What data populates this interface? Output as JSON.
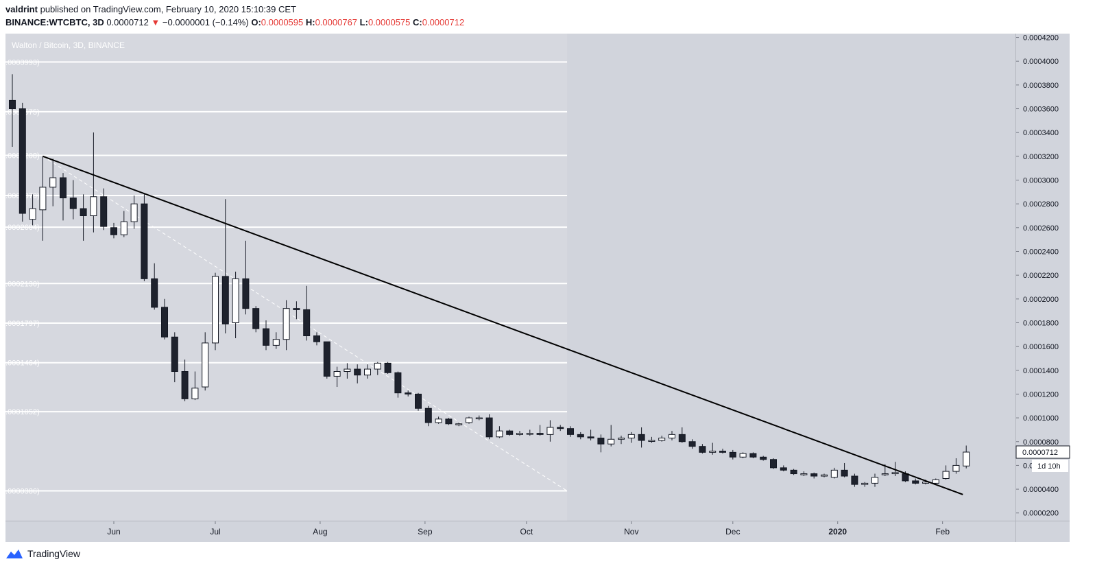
{
  "header": {
    "author": "valdrint",
    "published_text": "published on TradingView.com, February 10, 2020 15:10:39 CET",
    "symbol": "BINANCE:WTCBTC, 3D",
    "last_price": "0.0000712",
    "change_arrow": "▼",
    "change": "−0.0000001 (−0.14%)",
    "ohlc": [
      {
        "label": "O:",
        "value": "0.0000595"
      },
      {
        "label": "H:",
        "value": "0.0000767"
      },
      {
        "label": "L:",
        "value": "0.0000575"
      },
      {
        "label": "C:",
        "value": "0.0000712"
      }
    ]
  },
  "chart_data": {
    "type": "candlestick",
    "title": "Walton / Bitcoin, 3D, BINANCE",
    "ylim": [
      1.35e-05,
      0.0004232
    ],
    "y_ticks": [
      "0.0000200",
      "0.0000400",
      "0.0000600",
      "0.0000800",
      "0.0001000",
      "0.0001200",
      "0.0001400",
      "0.0001600",
      "0.0001800",
      "0.0002000",
      "0.0002200",
      "0.0002400",
      "0.0002600",
      "0.0002800",
      "0.0003000",
      "0.0003200",
      "0.0003400",
      "0.0003600",
      "0.0003800",
      "0.0004000",
      "0.0004200"
    ],
    "x_ticks": [
      {
        "label": "Jun",
        "date": "2019-06-01"
      },
      {
        "label": "Jul",
        "date": "2019-07-01"
      },
      {
        "label": "Aug",
        "date": "2019-08-01"
      },
      {
        "label": "Sep",
        "date": "2019-09-01"
      },
      {
        "label": "Oct",
        "date": "2019-10-01"
      },
      {
        "label": "Nov",
        "date": "2019-11-01"
      },
      {
        "label": "Dec",
        "date": "2019-12-01"
      },
      {
        "label": "2020",
        "date": "2020-01-01"
      },
      {
        "label": "Feb",
        "date": "2020-02-01"
      }
    ],
    "horizontal_levels": [
      {
        "label": "0.0003993",
        "value": 0.0003993
      },
      {
        "label": "0.0003575",
        "value": 0.0003575
      },
      {
        "label": "0.0003208",
        "value": 0.0003208
      },
      {
        "label": "0.0002870",
        "value": 0.000287
      },
      {
        "label": "0.0002604",
        "value": 0.0002604
      },
      {
        "label": "0.0002130",
        "value": 0.000213
      },
      {
        "label": "0.0001797",
        "value": 0.0001797
      },
      {
        "label": "0.0001464",
        "value": 0.0001464
      },
      {
        "label": "0.0001052",
        "value": 0.0001052
      },
      {
        "label": "0.0000386",
        "value": 3.86e-05
      }
    ],
    "levels_end_date": "2019-10-13",
    "trendline": {
      "start": {
        "date": "2019-05-11",
        "value": 0.00032
      },
      "end": {
        "date": "2020-02-07",
        "value": 3.55e-05
      }
    },
    "dashed_line": {
      "start": {
        "date": "2019-05-11",
        "value": 0.00032
      },
      "end": {
        "date": "2019-10-13",
        "value": 3.86e-05
      }
    },
    "last_price_label": "0.0000712",
    "countdown_label": "1d 10h",
    "candles": [
      {
        "date": "2019-05-02",
        "o": 0.000367,
        "h": 0.000389,
        "l": 0.000328,
        "c": 0.00036
      },
      {
        "date": "2019-05-05",
        "o": 0.00036,
        "h": 0.000365,
        "l": 0.000265,
        "c": 0.000272
      },
      {
        "date": "2019-05-08",
        "o": 0.000267,
        "h": 0.000288,
        "l": 0.000262,
        "c": 0.000276
      },
      {
        "date": "2019-05-11",
        "o": 0.000275,
        "h": 0.00032,
        "l": 0.000249,
        "c": 0.000294
      },
      {
        "date": "2019-05-14",
        "o": 0.000294,
        "h": 0.000318,
        "l": 0.000278,
        "c": 0.000302
      },
      {
        "date": "2019-05-17",
        "o": 0.000302,
        "h": 0.000306,
        "l": 0.000266,
        "c": 0.000285
      },
      {
        "date": "2019-05-20",
        "o": 0.000285,
        "h": 0.0003,
        "l": 0.000267,
        "c": 0.000276
      },
      {
        "date": "2019-05-23",
        "o": 0.000276,
        "h": 0.000288,
        "l": 0.000249,
        "c": 0.00027
      },
      {
        "date": "2019-05-26",
        "o": 0.00027,
        "h": 0.00034,
        "l": 0.000256,
        "c": 0.000286
      },
      {
        "date": "2019-05-29",
        "o": 0.000286,
        "h": 0.000293,
        "l": 0.000258,
        "c": 0.000261
      },
      {
        "date": "2019-06-01",
        "o": 0.00026,
        "h": 0.000264,
        "l": 0.000251,
        "c": 0.000254
      },
      {
        "date": "2019-06-04",
        "o": 0.000254,
        "h": 0.000274,
        "l": 0.000252,
        "c": 0.000265
      },
      {
        "date": "2019-06-07",
        "o": 0.000265,
        "h": 0.000287,
        "l": 0.000259,
        "c": 0.00028
      },
      {
        "date": "2019-06-10",
        "o": 0.00028,
        "h": 0.000288,
        "l": 0.000215,
        "c": 0.000217
      },
      {
        "date": "2019-06-13",
        "o": 0.000217,
        "h": 0.00023,
        "l": 0.000191,
        "c": 0.000193
      },
      {
        "date": "2019-06-16",
        "o": 0.000193,
        "h": 0.0002,
        "l": 0.000166,
        "c": 0.000168
      },
      {
        "date": "2019-06-19",
        "o": 0.000168,
        "h": 0.000172,
        "l": 0.00013,
        "c": 0.000139
      },
      {
        "date": "2019-06-22",
        "o": 0.000139,
        "h": 0.000149,
        "l": 0.000114,
        "c": 0.000116
      },
      {
        "date": "2019-06-25",
        "o": 0.000116,
        "h": 0.000139,
        "l": 0.000115,
        "c": 0.000125
      },
      {
        "date": "2019-06-28",
        "o": 0.000126,
        "h": 0.000172,
        "l": 0.000123,
        "c": 0.000163
      },
      {
        "date": "2019-07-01",
        "o": 0.000163,
        "h": 0.000222,
        "l": 0.000157,
        "c": 0.000219
      },
      {
        "date": "2019-07-04",
        "o": 0.000219,
        "h": 0.000284,
        "l": 0.000171,
        "c": 0.000179
      },
      {
        "date": "2019-07-07",
        "o": 0.00018,
        "h": 0.000223,
        "l": 0.000167,
        "c": 0.000217
      },
      {
        "date": "2019-07-10",
        "o": 0.000217,
        "h": 0.000249,
        "l": 0.000187,
        "c": 0.000192
      },
      {
        "date": "2019-07-13",
        "o": 0.000192,
        "h": 0.000194,
        "l": 0.000172,
        "c": 0.000175
      },
      {
        "date": "2019-07-16",
        "o": 0.000175,
        "h": 0.000182,
        "l": 0.000157,
        "c": 0.000161
      },
      {
        "date": "2019-07-19",
        "o": 0.000161,
        "h": 0.000172,
        "l": 0.000158,
        "c": 0.000166
      },
      {
        "date": "2019-07-22",
        "o": 0.000166,
        "h": 0.000199,
        "l": 0.000157,
        "c": 0.000192
      },
      {
        "date": "2019-07-25",
        "o": 0.000192,
        "h": 0.000198,
        "l": 0.000183,
        "c": 0.000191
      },
      {
        "date": "2019-07-28",
        "o": 0.000191,
        "h": 0.000211,
        "l": 0.000165,
        "c": 0.000169
      },
      {
        "date": "2019-07-31",
        "o": 0.000169,
        "h": 0.000172,
        "l": 0.000161,
        "c": 0.000164
      },
      {
        "date": "2019-08-03",
        "o": 0.000164,
        "h": 0.000164,
        "l": 0.000133,
        "c": 0.000135
      },
      {
        "date": "2019-08-06",
        "o": 0.000135,
        "h": 0.000143,
        "l": 0.000126,
        "c": 0.000139
      },
      {
        "date": "2019-08-09",
        "o": 0.000139,
        "h": 0.000146,
        "l": 0.000133,
        "c": 0.000141
      },
      {
        "date": "2019-08-12",
        "o": 0.000141,
        "h": 0.000145,
        "l": 0.000129,
        "c": 0.000136
      },
      {
        "date": "2019-08-15",
        "o": 0.000136,
        "h": 0.000145,
        "l": 0.000133,
        "c": 0.000141
      },
      {
        "date": "2019-08-18",
        "o": 0.000141,
        "h": 0.000147,
        "l": 0.000136,
        "c": 0.000146
      },
      {
        "date": "2019-08-21",
        "o": 0.000146,
        "h": 0.000147,
        "l": 0.000137,
        "c": 0.000138
      },
      {
        "date": "2019-08-24",
        "o": 0.000138,
        "h": 0.000139,
        "l": 0.000117,
        "c": 0.000121
      },
      {
        "date": "2019-08-27",
        "o": 0.000121,
        "h": 0.000123,
        "l": 0.000118,
        "c": 0.00012
      },
      {
        "date": "2019-08-30",
        "o": 0.00012,
        "h": 0.000121,
        "l": 0.000106,
        "c": 0.000108
      },
      {
        "date": "2019-09-02",
        "o": 0.000108,
        "h": 0.00011,
        "l": 9.3e-05,
        "c": 9.6e-05
      },
      {
        "date": "2019-09-05",
        "o": 9.6e-05,
        "h": 0.000101,
        "l": 9.5e-05,
        "c": 9.9e-05
      },
      {
        "date": "2019-09-08",
        "o": 9.9e-05,
        "h": 0.0001,
        "l": 9.4e-05,
        "c": 9.5e-05
      },
      {
        "date": "2019-09-11",
        "o": 9.5e-05,
        "h": 9.6e-05,
        "l": 9.3e-05,
        "c": 9.5e-05
      },
      {
        "date": "2019-09-14",
        "o": 9.6e-05,
        "h": 0.000101,
        "l": 9.5e-05,
        "c": 0.0001
      },
      {
        "date": "2019-09-17",
        "o": 0.0001,
        "h": 0.000102,
        "l": 9.8e-05,
        "c": 0.0001
      },
      {
        "date": "2019-09-20",
        "o": 0.0001,
        "h": 0.000103,
        "l": 8.2e-05,
        "c": 8.4e-05
      },
      {
        "date": "2019-09-23",
        "o": 8.4e-05,
        "h": 9.3e-05,
        "l": 8.3e-05,
        "c": 8.9e-05
      },
      {
        "date": "2019-09-26",
        "o": 8.9e-05,
        "h": 9e-05,
        "l": 8.5e-05,
        "c": 8.6e-05
      },
      {
        "date": "2019-09-29",
        "o": 8.6e-05,
        "h": 8.9e-05,
        "l": 8.5e-05,
        "c": 8.7e-05
      },
      {
        "date": "2019-10-02",
        "o": 8.7e-05,
        "h": 9e-05,
        "l": 8.5e-05,
        "c": 8.7e-05
      },
      {
        "date": "2019-10-05",
        "o": 8.7e-05,
        "h": 9.4e-05,
        "l": 8.5e-05,
        "c": 8.6e-05
      },
      {
        "date": "2019-10-08",
        "o": 8.6e-05,
        "h": 9.8e-05,
        "l": 8e-05,
        "c": 9.2e-05
      },
      {
        "date": "2019-10-11",
        "o": 9.2e-05,
        "h": 9.4e-05,
        "l": 8.9e-05,
        "c": 9.1e-05
      },
      {
        "date": "2019-10-14",
        "o": 9.1e-05,
        "h": 9.3e-05,
        "l": 8.4e-05,
        "c": 8.6e-05
      },
      {
        "date": "2019-10-17",
        "o": 8.6e-05,
        "h": 8.8e-05,
        "l": 8.2e-05,
        "c": 8.4e-05
      },
      {
        "date": "2019-10-20",
        "o": 8.4e-05,
        "h": 9e-05,
        "l": 8.1e-05,
        "c": 8.3e-05
      },
      {
        "date": "2019-10-23",
        "o": 8.3e-05,
        "h": 8.6e-05,
        "l": 7.1e-05,
        "c": 7.8e-05
      },
      {
        "date": "2019-10-26",
        "o": 7.8e-05,
        "h": 9.4e-05,
        "l": 7.6e-05,
        "c": 8.2e-05
      },
      {
        "date": "2019-10-29",
        "o": 8.2e-05,
        "h": 8.5e-05,
        "l": 7.8e-05,
        "c": 8.3e-05
      },
      {
        "date": "2019-11-01",
        "o": 8.3e-05,
        "h": 8.8e-05,
        "l": 7.9e-05,
        "c": 8.6e-05
      },
      {
        "date": "2019-11-04",
        "o": 8.6e-05,
        "h": 9.2e-05,
        "l": 7.5e-05,
        "c": 8.1e-05
      },
      {
        "date": "2019-11-07",
        "o": 8.1e-05,
        "h": 8.4e-05,
        "l": 7.9e-05,
        "c": 8.1e-05
      },
      {
        "date": "2019-11-10",
        "o": 8.1e-05,
        "h": 8.5e-05,
        "l": 8e-05,
        "c": 8.3e-05
      },
      {
        "date": "2019-11-13",
        "o": 8.3e-05,
        "h": 8.9e-05,
        "l": 8.1e-05,
        "c": 8.6e-05
      },
      {
        "date": "2019-11-16",
        "o": 8.6e-05,
        "h": 9.2e-05,
        "l": 7.9e-05,
        "c": 8e-05
      },
      {
        "date": "2019-11-19",
        "o": 8e-05,
        "h": 8.2e-05,
        "l": 7.4e-05,
        "c": 7.6e-05
      },
      {
        "date": "2019-11-22",
        "o": 7.6e-05,
        "h": 7.8e-05,
        "l": 7e-05,
        "c": 7.1e-05
      },
      {
        "date": "2019-11-25",
        "o": 7.1e-05,
        "h": 7.9e-05,
        "l": 6.9e-05,
        "c": 7.2e-05
      },
      {
        "date": "2019-11-28",
        "o": 7.2e-05,
        "h": 7.4e-05,
        "l": 7e-05,
        "c": 7.1e-05
      },
      {
        "date": "2019-12-01",
        "o": 7.1e-05,
        "h": 7.3e-05,
        "l": 6.5e-05,
        "c": 6.7e-05
      },
      {
        "date": "2019-12-04",
        "o": 6.7e-05,
        "h": 7.1e-05,
        "l": 6.6e-05,
        "c": 7e-05
      },
      {
        "date": "2019-12-07",
        "o": 7e-05,
        "h": 7.1e-05,
        "l": 6.6e-05,
        "c": 6.7e-05
      },
      {
        "date": "2019-12-10",
        "o": 6.7e-05,
        "h": 6.8e-05,
        "l": 6.4e-05,
        "c": 6.5e-05
      },
      {
        "date": "2019-12-13",
        "o": 6.5e-05,
        "h": 6.6e-05,
        "l": 5.7e-05,
        "c": 5.8e-05
      },
      {
        "date": "2019-12-16",
        "o": 5.8e-05,
        "h": 6e-05,
        "l": 5.5e-05,
        "c": 5.6e-05
      },
      {
        "date": "2019-12-19",
        "o": 5.6e-05,
        "h": 5.7e-05,
        "l": 5.2e-05,
        "c": 5.3e-05
      },
      {
        "date": "2019-12-22",
        "o": 5.3e-05,
        "h": 5.5e-05,
        "l": 5.1e-05,
        "c": 5.3e-05
      },
      {
        "date": "2019-12-25",
        "o": 5.3e-05,
        "h": 5.4e-05,
        "l": 4.9e-05,
        "c": 5.1e-05
      },
      {
        "date": "2019-12-28",
        "o": 5.1e-05,
        "h": 5.3e-05,
        "l": 5e-05,
        "c": 5.2e-05
      },
      {
        "date": "2019-12-31",
        "o": 5e-05,
        "h": 5.8e-05,
        "l": 4.9e-05,
        "c": 5.6e-05
      },
      {
        "date": "2020-01-03",
        "o": 5.6e-05,
        "h": 6.2e-05,
        "l": 5e-05,
        "c": 5.1e-05
      },
      {
        "date": "2020-01-06",
        "o": 5.1e-05,
        "h": 5.3e-05,
        "l": 4.2e-05,
        "c": 4.4e-05
      },
      {
        "date": "2020-01-09",
        "o": 4.4e-05,
        "h": 4.6e-05,
        "l": 4.2e-05,
        "c": 4.5e-05
      },
      {
        "date": "2020-01-12",
        "o": 4.5e-05,
        "h": 5.3e-05,
        "l": 4.2e-05,
        "c": 5e-05
      },
      {
        "date": "2020-01-15",
        "o": 5.3e-05,
        "h": 6.1e-05,
        "l": 5.1e-05,
        "c": 5.3e-05
      },
      {
        "date": "2020-01-18",
        "o": 5.3e-05,
        "h": 6.3e-05,
        "l": 5.1e-05,
        "c": 5.4e-05
      },
      {
        "date": "2020-01-21",
        "o": 5.3e-05,
        "h": 5.5e-05,
        "l": 4.6e-05,
        "c": 4.7e-05
      },
      {
        "date": "2020-01-24",
        "o": 4.7e-05,
        "h": 4.9e-05,
        "l": 4.4e-05,
        "c": 4.5e-05
      },
      {
        "date": "2020-01-27",
        "o": 4.5e-05,
        "h": 4.8e-05,
        "l": 4.4e-05,
        "c": 4.6e-05
      },
      {
        "date": "2020-01-30",
        "o": 4.5e-05,
        "h": 4.9e-05,
        "l": 4.4e-05,
        "c": 4.8e-05
      },
      {
        "date": "2020-02-02",
        "o": 4.9e-05,
        "h": 6e-05,
        "l": 4.8e-05,
        "c": 5.5e-05
      },
      {
        "date": "2020-02-05",
        "o": 5.5e-05,
        "h": 6.6e-05,
        "l": 5.3e-05,
        "c": 6e-05
      },
      {
        "date": "2020-02-08",
        "o": 5.95e-05,
        "h": 7.67e-05,
        "l": 5.75e-05,
        "c": 7.12e-05
      }
    ]
  },
  "colors": {
    "pane_bg": "#d1d4dc",
    "levels_bg": "#d6d8df",
    "axis_bg": "#d1d4dc",
    "grid_line": "#ffffff",
    "trendline": "#000000",
    "candle_up_fill": "#ffffff",
    "candle_down_fill": "#1e222d",
    "candle_border": "#131722",
    "down_text": "#e53935",
    "brand_blue": "#2962ff"
  },
  "footer": {
    "brand_icon": "tradingview-logo-icon",
    "brand_text": "TradingView"
  }
}
